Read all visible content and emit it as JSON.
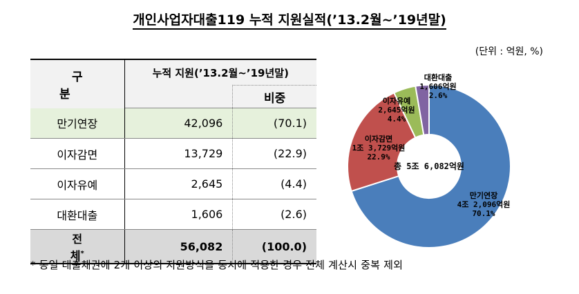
{
  "title": "개인사업자대출119 누적 지원실적(’13.2월~’19년말)",
  "unit": "(단위 : 억원, %)",
  "table": {
    "header_category": "구 분",
    "header_amount": "누적 지원(’13.2월~’19년말)",
    "header_share": "비중",
    "rows": [
      {
        "name": "만기연장",
        "amount": "42,096",
        "share": "(70.1)"
      },
      {
        "name": "이자감면",
        "amount": "13,729",
        "share": "(22.9)"
      },
      {
        "name": "이자유예",
        "amount": "2,645",
        "share": "(4.4)"
      },
      {
        "name": "대환대출",
        "amount": "1,606",
        "share": "(2.6)"
      }
    ],
    "total": {
      "name": "전 체",
      "mark": "*",
      "amount": "56,082",
      "share": "(100.0)"
    }
  },
  "footnote": "* 동일 대출채권에 2개 이상의 지원방식을 동시에 적용한 경우 전체 계산시 중복 제외",
  "chart_data": {
    "type": "pie",
    "style": "donut",
    "center_label": "총 5조 6,082억원",
    "slices": [
      {
        "name": "만기연장",
        "value": 42096,
        "amount_label": "4조 2,096억원",
        "share_label": "70.1%",
        "percent": 70.1,
        "color": "#4a7ebb"
      },
      {
        "name": "이자감면",
        "value": 13729,
        "amount_label": "1조 3,729억원",
        "share_label": "22.9%",
        "percent": 22.9,
        "color": "#c0504d"
      },
      {
        "name": "이자유예",
        "value": 2645,
        "amount_label": "2,645억원",
        "share_label": "4.4%",
        "percent": 4.4,
        "color": "#9bbb59"
      },
      {
        "name": "대환대출",
        "value": 1606,
        "amount_label": "1,606억원",
        "share_label": "2.6%",
        "percent": 2.6,
        "color": "#8064a2"
      }
    ]
  }
}
